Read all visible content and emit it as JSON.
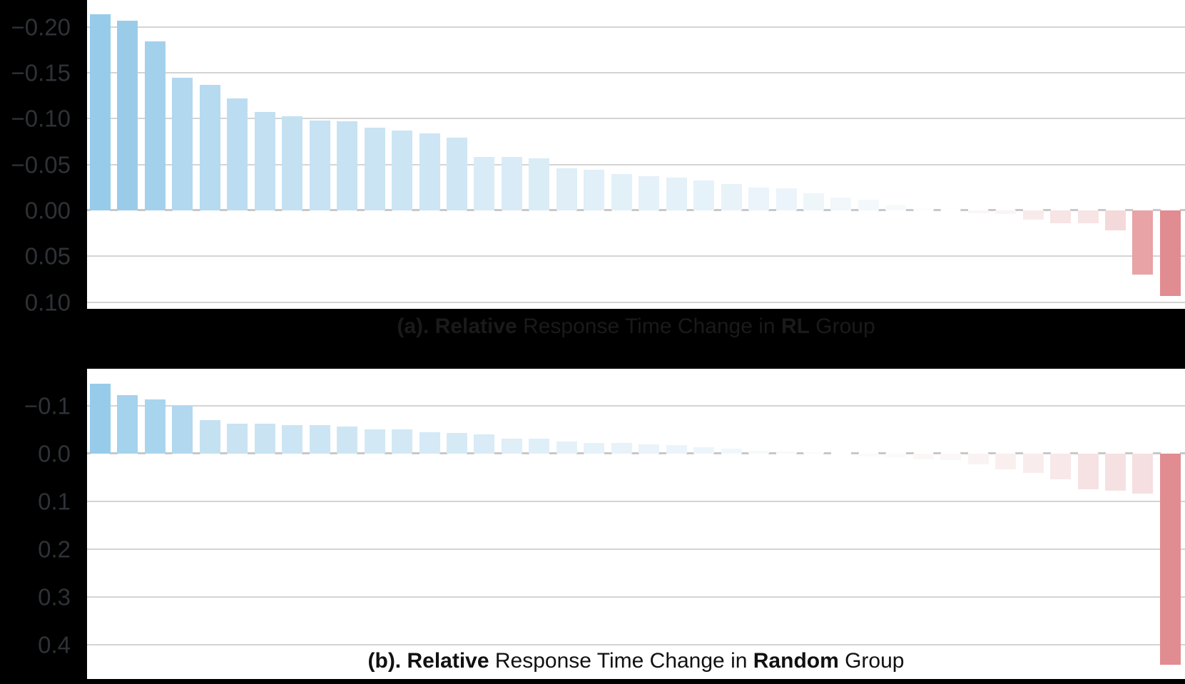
{
  "style": {
    "figure_background": "#000000",
    "panel_background": "#ffffff",
    "gridline_color": "#d4d4d4",
    "zero_tick_color": "#c8c8c8",
    "axis_text_color": "#2e3237",
    "caption_a_color": "#1a1a1a",
    "caption_b_color": "#111111"
  },
  "chart_data": [
    {
      "type": "bar",
      "id": "a",
      "title": "(a). Relative Response Time Change in RL Group",
      "caption": {
        "parts": [
          "(a). Relative",
          " Response Time Change in ",
          "RL",
          " Group"
        ]
      },
      "group": "RL",
      "n_bars": 40,
      "values": [
        -0.214,
        -0.207,
        -0.184,
        -0.145,
        -0.137,
        -0.122,
        -0.107,
        -0.103,
        -0.098,
        -0.097,
        -0.09,
        -0.087,
        -0.084,
        -0.079,
        -0.058,
        -0.058,
        -0.057,
        -0.046,
        -0.044,
        -0.04,
        -0.037,
        -0.036,
        -0.033,
        -0.029,
        -0.025,
        -0.024,
        -0.019,
        -0.014,
        -0.012,
        -0.006,
        -0.002,
        -0.001,
        0.003,
        0.004,
        0.01,
        0.014,
        0.014,
        0.022,
        0.07,
        0.093
      ],
      "y_tick_labels": [
        "−0.20",
        "−0.15",
        "−0.10",
        "−0.05",
        "0.00",
        "0.05",
        "0.10"
      ],
      "y_tick_values": [
        -0.2,
        -0.15,
        -0.1,
        -0.05,
        0.0,
        0.05,
        0.1
      ],
      "ylim": [
        -0.2294,
        0.1073
      ],
      "y_axis_inverted": true,
      "x_tick_labels": [],
      "xlabel": "",
      "grid": true,
      "legend": "none",
      "colors": {
        "negative_full": "#97CBEA",
        "positive_full": "#E18C90",
        "near_zero": "#FDFDFD"
      },
      "color_rule": "diverging per side: tint = (|v|/max|side|)^0.8; blue for negative, red for positive"
    },
    {
      "type": "bar",
      "id": "b",
      "title": "(b). Relative Response Time Change in Random Group",
      "caption": {
        "parts": [
          "(b). Relative",
          " Response Time Change in ",
          "Random",
          " Group"
        ]
      },
      "group": "Random",
      "n_bars": 40,
      "values": [
        -0.146,
        -0.122,
        -0.114,
        -0.1,
        -0.07,
        -0.063,
        -0.063,
        -0.059,
        -0.059,
        -0.056,
        -0.05,
        -0.05,
        -0.045,
        -0.044,
        -0.041,
        -0.032,
        -0.031,
        -0.025,
        -0.023,
        -0.022,
        -0.019,
        -0.018,
        -0.014,
        -0.011,
        -0.006,
        -0.004,
        -0.003,
        0.0,
        0.006,
        0.007,
        0.012,
        0.013,
        0.022,
        0.033,
        0.04,
        0.053,
        0.075,
        0.078,
        0.083,
        0.442
      ],
      "y_tick_labels": [
        "−0.1",
        "0.0",
        "0.1",
        "0.2",
        "0.3",
        "0.4"
      ],
      "y_tick_values": [
        -0.1,
        0.0,
        0.1,
        0.2,
        0.3,
        0.4
      ],
      "ylim": [
        -0.1776,
        0.4716
      ],
      "y_axis_inverted": true,
      "x_tick_labels": [],
      "xlabel": "",
      "grid": true,
      "legend": "none",
      "colors": {
        "negative_full": "#97CBEA",
        "positive_full": "#E18C90",
        "near_zero": "#FDFDFD"
      },
      "color_rule": "diverging per side: tint = (|v|/max|side|)^0.8; blue for negative, red for positive"
    }
  ]
}
